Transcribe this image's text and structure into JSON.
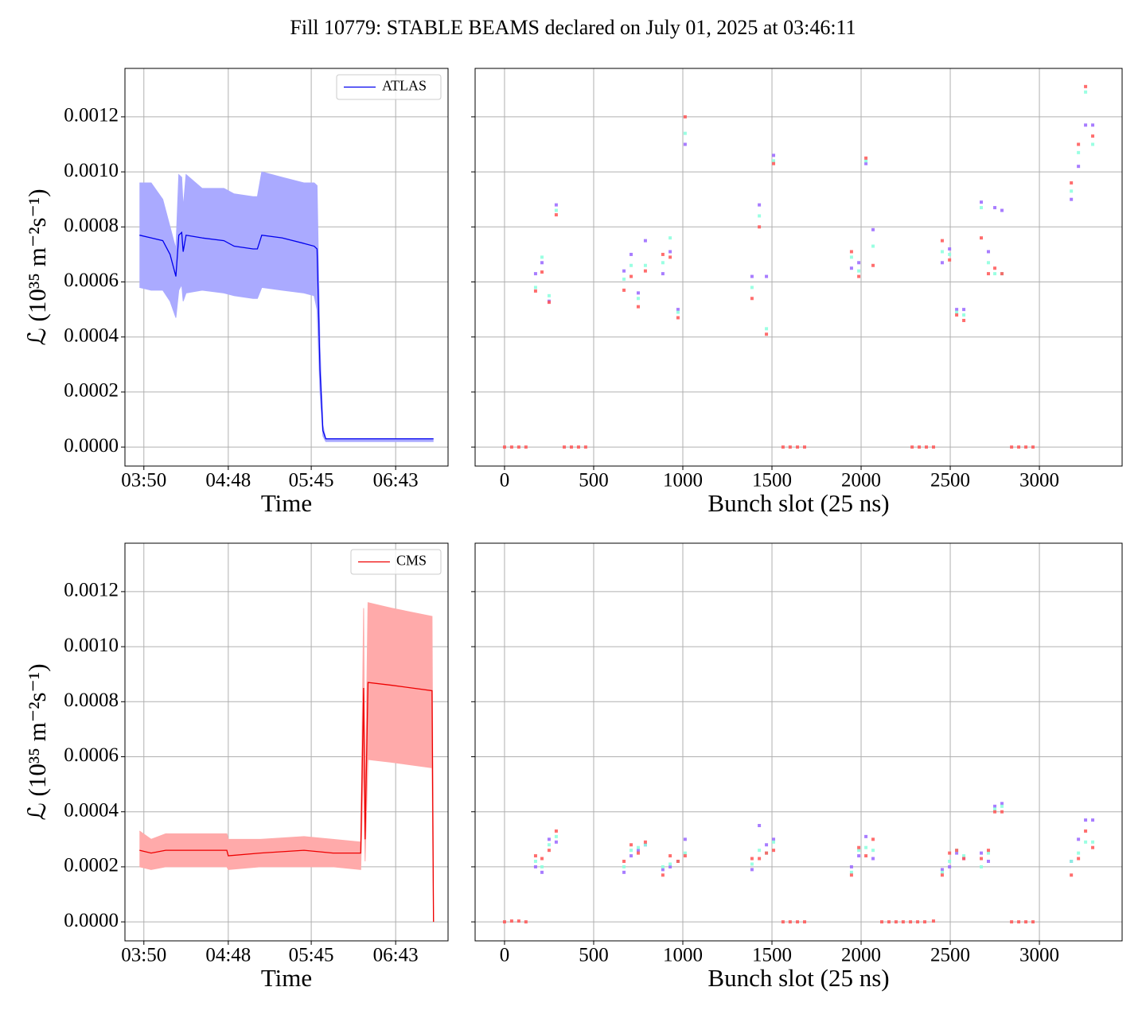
{
  "title": "Fill 10779: STABLE BEAMS declared on July 01, 2025 at 03:46:11",
  "chart_data": [
    {
      "type": "line",
      "xlabel": "Time",
      "ylabel": "ℒ (10³⁵ m⁻²s⁻¹)",
      "grid": true,
      "legend": "upper right",
      "xlim": [
        "03:37",
        "07:19"
      ],
      "xticks": [
        "03:50",
        "04:48",
        "05:45",
        "06:43"
      ],
      "ylim": [
        -6.9e-05,
        0.001376
      ],
      "yticks": [
        {
          "value": 0,
          "label": "0.0000"
        },
        {
          "value": 0.0002,
          "label": "0.0002"
        },
        {
          "value": 0.0004,
          "label": "0.0004"
        },
        {
          "value": 0.0006,
          "label": "0.0006"
        },
        {
          "value": 0.0008,
          "label": "0.0008"
        },
        {
          "value": 0.001,
          "label": "0.0010"
        },
        {
          "value": 0.0012,
          "label": "0.0012"
        }
      ],
      "x": [
        "03:47",
        "03:55",
        "04:03",
        "04:08",
        "04:12",
        "04:14",
        "04:16",
        "04:17",
        "04:19",
        "04:30",
        "04:45",
        "04:52",
        "05:05",
        "05:08",
        "05:11",
        "05:25",
        "05:40",
        "05:47",
        "05:49",
        "05:51",
        "05:53",
        "05:55",
        "06:30",
        "07:09"
      ],
      "series": [
        {
          "name": "ATLAS",
          "color": "#0000ee",
          "band_color": "#aaaaff",
          "values": [
            0.00077,
            0.00076,
            0.00075,
            0.0007,
            0.00062,
            0.00077,
            0.00078,
            0.00071,
            0.00077,
            0.00076,
            0.00075,
            0.00073,
            0.00072,
            0.00072,
            0.00077,
            0.00076,
            0.00074,
            0.00073,
            0.00072,
            0.00028,
            6e-05,
            3e-05,
            3e-05,
            3e-05
          ],
          "lower": [
            0.00058,
            0.00057,
            0.00057,
            0.00053,
            0.00047,
            0.00057,
            0.00059,
            0.00053,
            0.00056,
            0.00057,
            0.00056,
            0.00055,
            0.00054,
            0.00054,
            0.00058,
            0.00057,
            0.00056,
            0.00055,
            0.0005,
            0.0002,
            4e-05,
            2e-05,
            2e-05,
            2e-05
          ],
          "upper": [
            0.00096,
            0.00096,
            0.0009,
            0.0008,
            0.00072,
            0.00099,
            0.00098,
            0.00087,
            0.00099,
            0.00094,
            0.00094,
            0.00092,
            0.00091,
            0.00091,
            0.001,
            0.00098,
            0.00096,
            0.00096,
            0.00095,
            0.00037,
            8e-05,
            3e-05,
            3e-05,
            3e-05
          ]
        }
      ]
    },
    {
      "type": "scatter",
      "xlabel": "Bunch slot (25 ns)",
      "grid": true,
      "xlim": [
        -165,
        3464
      ],
      "xticks": [
        0,
        500,
        1000,
        1500,
        2000,
        2500,
        3000
      ],
      "ylim": [
        -6.9e-05,
        0.001376
      ],
      "yticks": [
        0,
        0.0002,
        0.0004,
        0.0006,
        0.0008,
        0.001,
        0.0012
      ],
      "series": [
        {
          "color": "#9966ff",
          "x": [
            174,
            210,
            250,
            290,
            670,
            710,
            750,
            790,
            888,
            929,
            973,
            1013,
            1388,
            1429,
            1469,
            1509,
            1946,
            1987,
            2027,
            2067,
            2455,
            2496,
            2536,
            2576,
            2674,
            2714,
            2750,
            2790,
            3179,
            3219,
            3259,
            3299
          ],
          "values": [
            0.00063,
            0.00067,
            0.00053,
            0.00088,
            0.00064,
            0.0007,
            0.00056,
            0.00075,
            0.00063,
            0.00071,
            0.0005,
            0.0011,
            0.00062,
            0.00088,
            0.00062,
            0.00106,
            0.00065,
            0.00067,
            0.00103,
            0.00079,
            0.00067,
            0.00072,
            0.0005,
            0.0005,
            0.00089,
            0.00071,
            0.00087,
            0.00086,
            0.0009,
            0.00102,
            0.00117,
            0.00117
          ]
        },
        {
          "color": "#88ffdd",
          "x": [
            174,
            210,
            250,
            290,
            670,
            710,
            750,
            790,
            888,
            929,
            973,
            1013,
            1388,
            1429,
            1469,
            1509,
            1946,
            1987,
            2027,
            2067,
            2455,
            2496,
            2536,
            2576,
            2674,
            2714,
            2750,
            2790,
            3179,
            3219,
            3259,
            3299
          ],
          "values": [
            0.00058,
            0.00069,
            0.00055,
            0.00086,
            0.00061,
            0.00066,
            0.00054,
            0.00066,
            0.00067,
            0.00076,
            0.00049,
            0.00114,
            0.00058,
            0.00084,
            0.00043,
            0.00104,
            0.00069,
            0.00064,
            0.00104,
            0.00073,
            0.00071,
            0.0007,
            0.00049,
            0.00048,
            0.00087,
            0.00067,
            0.00063,
            0.00063,
            0.00093,
            0.00107,
            0.00129,
            0.0011
          ]
        },
        {
          "color": "#ff5555",
          "x": [
            0,
            40,
            80,
            120,
            174,
            210,
            250,
            290,
            335,
            375,
            415,
            455,
            670,
            710,
            750,
            790,
            888,
            929,
            973,
            1013,
            1388,
            1429,
            1469,
            1509,
            1562,
            1602,
            1643,
            1683,
            1946,
            1987,
            2027,
            2067,
            2286,
            2326,
            2366,
            2406,
            2455,
            2496,
            2536,
            2576,
            2674,
            2714,
            2750,
            2790,
            2844,
            2884,
            2924,
            2964,
            3179,
            3219,
            3259,
            3299
          ],
          "values": [
            0,
            0,
            0,
            0,
            0.000567,
            0.000636,
            0.000526,
            0.000844,
            0,
            0,
            0,
            0,
            0.00057,
            0.00062,
            0.00051,
            0.00064,
            0.0007,
            0.00069,
            0.00047,
            0.0012,
            0.00054,
            0.0008,
            0.00041,
            0.00103,
            0,
            0,
            0,
            0,
            0.00071,
            0.00062,
            0.00105,
            0.00066,
            0,
            0,
            0,
            0,
            0.00075,
            0.00068,
            0.00048,
            0.00046,
            0.00076,
            0.00063,
            0.00065,
            0.00063,
            0,
            0,
            0,
            0,
            0.00096,
            0.0011,
            0.00131,
            0.00113
          ]
        }
      ]
    },
    {
      "type": "line",
      "xlabel": "Time",
      "ylabel": "ℒ (10³⁵ m⁻²s⁻¹)",
      "grid": true,
      "legend": "upper right",
      "xlim": [
        "03:37",
        "07:19"
      ],
      "xticks": [
        "03:50",
        "04:48",
        "05:45",
        "06:43"
      ],
      "ylim": [
        -6.9e-05,
        0.001376
      ],
      "yticks": [
        {
          "value": 0,
          "label": "0.0000"
        },
        {
          "value": 0.0002,
          "label": "0.0002"
        },
        {
          "value": 0.0004,
          "label": "0.0004"
        },
        {
          "value": 0.0006,
          "label": "0.0006"
        },
        {
          "value": 0.0008,
          "label": "0.0008"
        },
        {
          "value": 0.001,
          "label": "0.0010"
        },
        {
          "value": 0.0012,
          "label": "0.0012"
        }
      ],
      "x": [
        "03:47",
        "03:55",
        "04:05",
        "04:20",
        "04:47",
        "04:48",
        "05:10",
        "05:40",
        "06:00",
        "06:19",
        "06:21",
        "06:22",
        "06:24",
        "06:40",
        "07:08",
        "07:09"
      ],
      "series": [
        {
          "name": "CMS",
          "color": "#ee0000",
          "band_color": "#ffaaaa",
          "values": [
            0.00026,
            0.00025,
            0.00026,
            0.00026,
            0.00026,
            0.00024,
            0.00025,
            0.00026,
            0.00025,
            0.00025,
            0.00085,
            0.0003,
            0.00087,
            0.00086,
            0.00084,
            0
          ],
          "lower": [
            0.0002,
            0.00019,
            0.0002,
            0.0002,
            0.0002,
            0.00019,
            0.0002,
            0.0002,
            0.0002,
            0.00019,
            0.0006,
            0.00022,
            0.00059,
            0.00058,
            0.00056,
            0
          ],
          "upper": [
            0.00033,
            0.0003,
            0.00032,
            0.00032,
            0.00032,
            0.0003,
            0.0003,
            0.00031,
            0.0003,
            0.00029,
            0.00114,
            0.0004,
            0.00116,
            0.00114,
            0.00111,
            0
          ]
        }
      ]
    },
    {
      "type": "scatter",
      "xlabel": "Bunch slot (25 ns)",
      "grid": true,
      "xlim": [
        -165,
        3464
      ],
      "xticks": [
        0,
        500,
        1000,
        1500,
        2000,
        2500,
        3000
      ],
      "ylim": [
        -6.9e-05,
        0.001376
      ],
      "yticks": [
        0,
        0.0002,
        0.0004,
        0.0006,
        0.0008,
        0.001,
        0.0012
      ],
      "series": [
        {
          "color": "#9966ff",
          "x": [
            174,
            210,
            250,
            290,
            670,
            710,
            750,
            790,
            888,
            929,
            973,
            1013,
            1388,
            1429,
            1469,
            1509,
            1946,
            1987,
            2027,
            2067,
            2455,
            2496,
            2536,
            2576,
            2674,
            2714,
            2750,
            2790,
            3179,
            3219,
            3259,
            3299
          ],
          "values": [
            0.0002,
            0.00018,
            0.0003,
            0.00029,
            0.00018,
            0.00024,
            0.00026,
            0.00028,
            0.00019,
            0.0002,
            0.00022,
            0.0003,
            0.00019,
            0.00035,
            0.00028,
            0.0003,
            0.0002,
            0.00024,
            0.00031,
            0.00023,
            0.00019,
            0.0002,
            0.00025,
            0.00023,
            0.00025,
            0.00022,
            0.00042,
            0.00043,
            0.00022,
            0.0003,
            0.00037,
            0.00037
          ]
        },
        {
          "color": "#88ffdd",
          "x": [
            174,
            210,
            250,
            290,
            670,
            710,
            750,
            790,
            888,
            929,
            973,
            1013,
            1388,
            1429,
            1469,
            1509,
            1946,
            1987,
            2027,
            2067,
            2455,
            2496,
            2536,
            2576,
            2674,
            2714,
            2750,
            2790,
            3179,
            3219,
            3259,
            3299
          ],
          "values": [
            0.00022,
            0.0002,
            0.00028,
            0.00031,
            0.0002,
            0.00026,
            0.00027,
            0.00028,
            0.0002,
            0.00021,
            0.00022,
            0.00025,
            0.00021,
            0.00026,
            0.00025,
            0.00029,
            0.00018,
            0.00026,
            0.00027,
            0.00026,
            0.00018,
            0.00022,
            0.00026,
            0.00024,
            0.0002,
            0.00025,
            0.00041,
            0.00042,
            0.00022,
            0.00025,
            0.00029,
            0.00029
          ]
        },
        {
          "color": "#ff5555",
          "x": [
            0,
            40,
            80,
            120,
            174,
            210,
            250,
            290,
            670,
            710,
            750,
            790,
            888,
            929,
            973,
            1013,
            1388,
            1429,
            1469,
            1509,
            1562,
            1602,
            1643,
            1683,
            1946,
            1987,
            2027,
            2067,
            2116,
            2156,
            2196,
            2236,
            2277,
            2317,
            2357,
            2406,
            2455,
            2496,
            2536,
            2576,
            2674,
            2714,
            2750,
            2790,
            2844,
            2884,
            2924,
            2964,
            3179,
            3219,
            3259,
            3299
          ],
          "values": [
            0,
            3e-06,
            3e-06,
            0,
            0.00024,
            0.00023,
            0.00026,
            0.00033,
            0.00022,
            0.00028,
            0.00025,
            0.00029,
            0.00017,
            0.00024,
            0.00022,
            0.00024,
            0.00023,
            0.00023,
            0.00025,
            0.00026,
            0,
            0,
            0,
            0,
            0.00017,
            0.00027,
            0.00024,
            0.0003,
            0,
            0,
            0,
            0,
            0,
            0,
            0,
            3e-06,
            0.00017,
            0.00025,
            0.00026,
            0.00023,
            0.00023,
            0.00026,
            0.0004,
            0.0004,
            0,
            0,
            0,
            0,
            0.00017,
            0.00023,
            0.00033,
            0.00027
          ]
        }
      ]
    }
  ]
}
